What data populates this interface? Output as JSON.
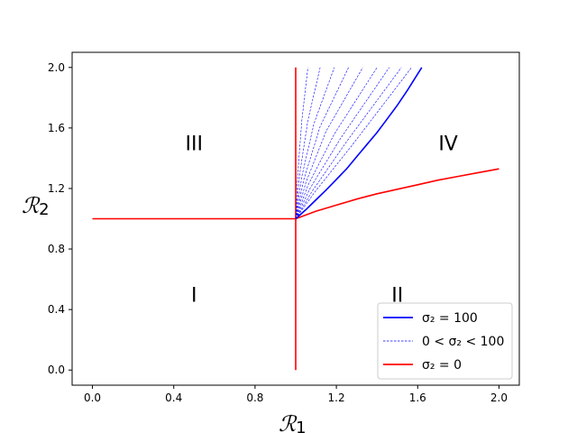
{
  "chart_data": {
    "type": "line",
    "xlabel": "ℛ",
    "xlabel_sub": "1",
    "ylabel": "ℛ",
    "ylabel_sub": "2",
    "xlim": [
      -0.1,
      2.1
    ],
    "ylim": [
      -0.1,
      2.1
    ],
    "xticks": [
      0.0,
      0.4,
      0.8,
      1.2,
      1.6,
      2.0
    ],
    "yticks": [
      0.0,
      0.4,
      0.8,
      1.2,
      1.6,
      2.0
    ],
    "xtick_labels": [
      "0.0",
      "0.4",
      "0.8",
      "1.2",
      "1.6",
      "2.0"
    ],
    "ytick_labels": [
      "0.0",
      "0.4",
      "0.8",
      "1.2",
      "1.6",
      "2.0"
    ],
    "grid": false,
    "legend_position": "lower-right",
    "regions": [
      {
        "label": "I",
        "x": 0.5,
        "y": 0.5
      },
      {
        "label": "II",
        "x": 1.5,
        "y": 0.5
      },
      {
        "label": "III",
        "x": 0.5,
        "y": 1.5
      },
      {
        "label": "IV",
        "x": 1.75,
        "y": 1.5
      }
    ],
    "legend": [
      {
        "label": "σ₂ = 100",
        "color": "#0000ff",
        "style": "solid"
      },
      {
        "label": "0 < σ₂ < 100",
        "color": "#0000ff",
        "style": "dashed"
      },
      {
        "label": "σ₂ = 0",
        "color": "#ff0000",
        "style": "solid"
      }
    ],
    "series": [
      {
        "name": "σ₂ = 0",
        "color": "#ff0000",
        "style": "solid",
        "segments": [
          {
            "x": [
              0.0,
              1.0
            ],
            "y": [
              1.0,
              1.0
            ]
          },
          {
            "x": [
              1.0,
              1.0
            ],
            "y": [
              0.0,
              2.0
            ]
          },
          {
            "x": [
              1.0,
              1.1,
              1.2,
              1.3,
              1.4,
              1.5,
              1.6,
              1.7,
              1.8,
              1.9,
              2.0
            ],
            "y": [
              1.0,
              1.05,
              1.09,
              1.13,
              1.165,
              1.195,
              1.225,
              1.255,
              1.28,
              1.305,
              1.33
            ]
          }
        ]
      },
      {
        "name": "σ₂ = 100",
        "color": "#0000ff",
        "style": "solid",
        "segments": [
          {
            "x": [
              1.0,
              1.05,
              1.1,
              1.15,
              1.2,
              1.25,
              1.3,
              1.35,
              1.4,
              1.45,
              1.5,
              1.55,
              1.62
            ],
            "y": [
              1.0,
              1.06,
              1.125,
              1.19,
              1.26,
              1.33,
              1.41,
              1.49,
              1.57,
              1.66,
              1.75,
              1.85,
              2.0
            ]
          }
        ]
      },
      {
        "name": "0 < σ₂ < 100",
        "color": "#0000ff",
        "style": "dashed",
        "segments": [
          {
            "x": [
              1.0,
              1.01,
              1.03,
              1.06
            ],
            "y": [
              1.0,
              1.3,
              1.65,
              2.0
            ]
          },
          {
            "x": [
              1.0,
              1.02,
              1.06,
              1.12
            ],
            "y": [
              1.0,
              1.3,
              1.65,
              2.0
            ]
          },
          {
            "x": [
              1.0,
              1.03,
              1.09,
              1.19
            ],
            "y": [
              1.0,
              1.28,
              1.63,
              2.0
            ]
          },
          {
            "x": [
              1.0,
              1.04,
              1.12,
              1.26
            ],
            "y": [
              1.0,
              1.26,
              1.61,
              2.0
            ]
          },
          {
            "x": [
              1.0,
              1.05,
              1.15,
              1.33
            ],
            "y": [
              1.0,
              1.24,
              1.58,
              2.0
            ]
          },
          {
            "x": [
              1.0,
              1.06,
              1.19,
              1.4
            ],
            "y": [
              1.0,
              1.22,
              1.56,
              2.0
            ]
          },
          {
            "x": [
              1.0,
              1.07,
              1.22,
              1.46
            ],
            "y": [
              1.0,
              1.2,
              1.53,
              2.0
            ]
          },
          {
            "x": [
              1.0,
              1.08,
              1.25,
              1.52
            ],
            "y": [
              1.0,
              1.18,
              1.51,
              2.0
            ]
          },
          {
            "x": [
              1.0,
              1.09,
              1.28,
              1.57
            ],
            "y": [
              1.0,
              1.17,
              1.49,
              2.0
            ]
          }
        ]
      }
    ]
  }
}
